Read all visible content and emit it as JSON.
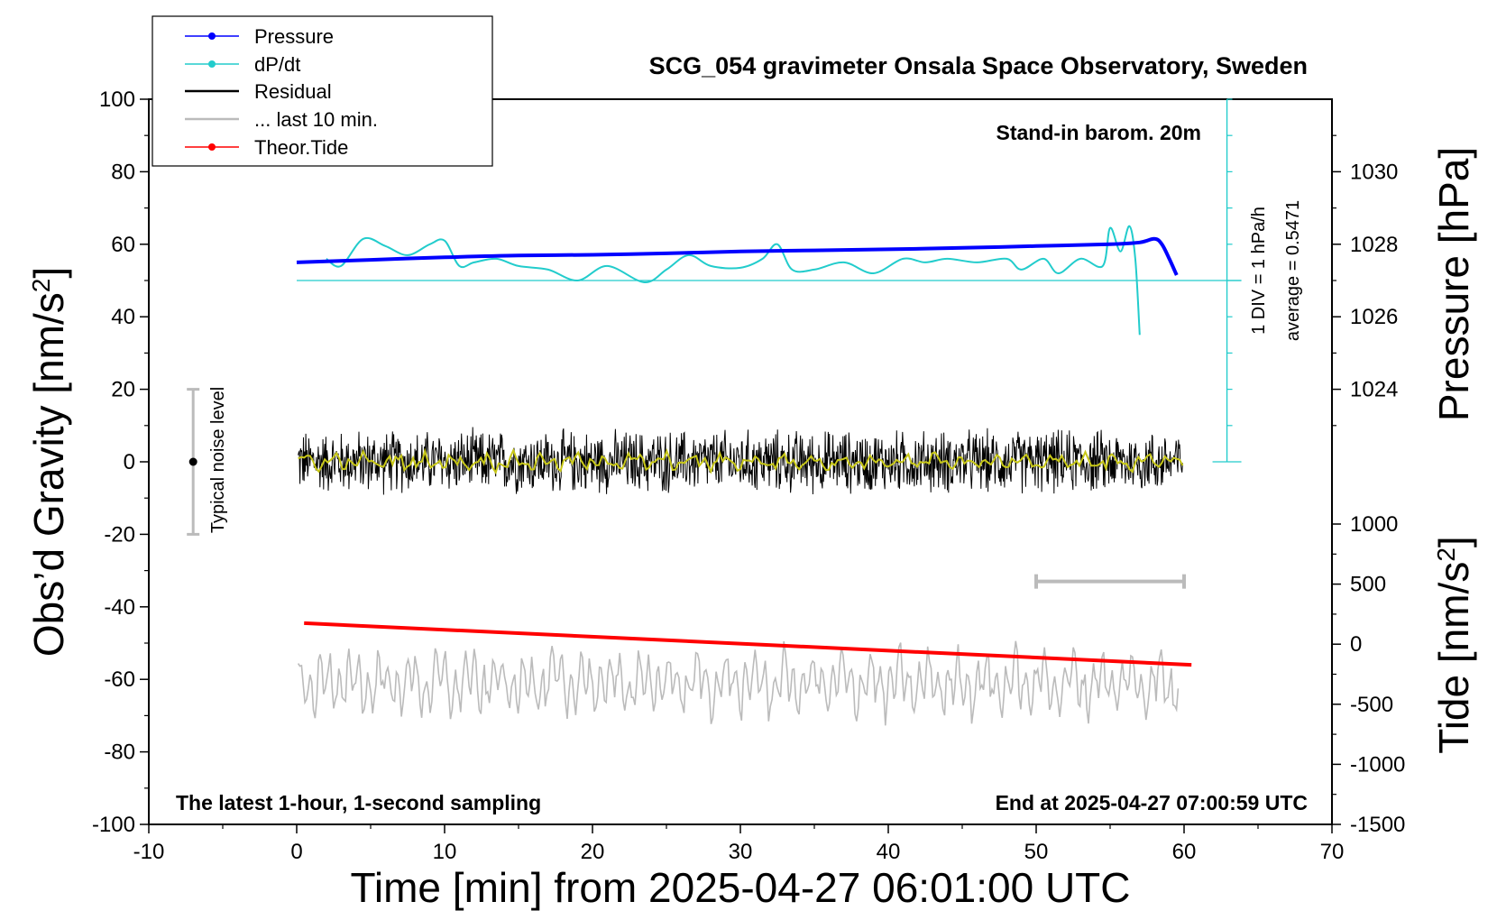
{
  "chart_data": {
    "type": "line",
    "title": "SCG_054 gravimeter Onsala Space Observatory, Sweden",
    "xlabel": "Time [min] from 2025-04-27 06:01:00 UTC",
    "ylabel_left_main": "Obs’d Gravity [nm/s",
    "ylabel_left_sup": "2",
    "ylabel_left_end": "]",
    "ylabel_right_top": "Pressure [hPa]",
    "ylabel_right_bottom_main": "Tide [nm/s",
    "ylabel_right_bottom_sup": "2",
    "ylabel_right_bottom_end": "]",
    "xlim": [
      -10,
      70
    ],
    "ylim_left": [
      -100,
      100
    ],
    "x_ticks": [
      "-10",
      "0",
      "10",
      "20",
      "30",
      "40",
      "50",
      "60",
      "70"
    ],
    "y_ticks_left": [
      "100",
      "80",
      "60",
      "40",
      "20",
      "0",
      "-20",
      "-40",
      "-60",
      "-80",
      "-100"
    ],
    "pressure_ticks": [
      "1030",
      "1028",
      "1026",
      "1024"
    ],
    "tide_ticks": [
      "1000",
      "500",
      "0",
      "-500",
      "-1000",
      "-1500"
    ],
    "annotations": {
      "barometer": "Stand-in barom. 20m",
      "dpdt_div": "1 DIV = 1 hPa/h",
      "dpdt_average": "average = 0.5471",
      "noise": "Typical noise level",
      "latest": "The latest 1-hour, 1-second sampling",
      "end": "End at 2025-04-27 07:00:59 UTC"
    },
    "legend": {
      "position": "top-left",
      "entries": [
        "Pressure",
        "dP/dt",
        "Residual",
        "... last 10 min.",
        "Theor.Tide"
      ]
    },
    "colors": {
      "pressure": "#0000ff",
      "dpdt": "#22cccc",
      "residual": "#000000",
      "residual_smooth": "#c8c818",
      "last10": "#bbbbbb",
      "tide": "#ff0000"
    },
    "series": [
      {
        "name": "Pressure",
        "x": [
          0,
          5,
          10,
          15,
          20,
          25,
          30,
          35,
          40,
          45,
          50,
          55,
          57,
          58,
          58.5,
          59,
          59.5
        ],
        "y": [
          55,
          55.7,
          56.4,
          56.9,
          57.1,
          57.5,
          58,
          58.3,
          58.6,
          59,
          59.5,
          60,
          60.5,
          61.5,
          60,
          56,
          51.5
        ]
      },
      {
        "name": "dP/dt",
        "x": [
          2,
          3,
          4.5,
          6,
          7.5,
          9,
          10,
          11,
          12,
          13.5,
          15,
          17,
          19,
          21,
          23.5,
          25,
          26.5,
          28,
          30,
          31.5,
          32.5,
          33.5,
          35,
          37,
          39,
          41,
          42.5,
          44,
          46,
          48,
          49,
          50.5,
          51.5,
          53,
          54.5,
          55,
          55.7,
          56.3,
          56.7,
          57
        ],
        "y": [
          56,
          54,
          61.5,
          59.5,
          57,
          60,
          61,
          54,
          55,
          56,
          54,
          53,
          50,
          54,
          49.5,
          53,
          57,
          54,
          53.5,
          56,
          60,
          53,
          53,
          55,
          52,
          56,
          55,
          56,
          55,
          56,
          53,
          56,
          52,
          56,
          54,
          64.5,
          58,
          65,
          56,
          35
        ]
      },
      {
        "name": "Theor.Tide",
        "x": [
          0.5,
          60.5
        ],
        "y": [
          -44.5,
          -56
        ]
      }
    ],
    "residual_amplitude": 10,
    "last10_amplitude": 10,
    "last10_center": -61,
    "dpdt_baseline": 50,
    "noise_bar": [
      -20,
      20
    ],
    "last10_bar_x": [
      50,
      60
    ],
    "last10_bar_y": -33
  }
}
